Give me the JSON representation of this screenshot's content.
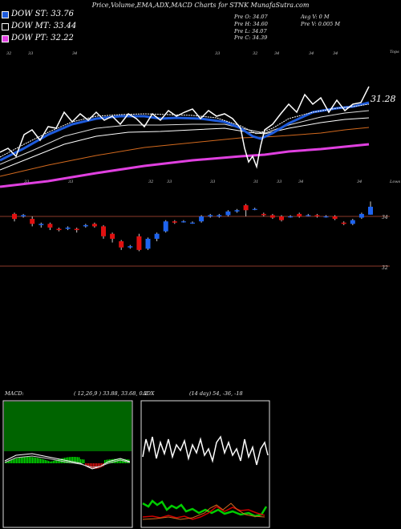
{
  "header": {
    "title": "Price,Volume,EMA,ADX,MACD Charts for STNK MunafaSutra.com"
  },
  "legend": [
    {
      "label": "DOW ST: 33.76",
      "color": "#1e5bdc"
    },
    {
      "label": "DOW MT: 33.44",
      "color": "#000000"
    },
    {
      "label": "DOW PT: 32.22",
      "color": "#e040e0"
    }
  ],
  "ohlc_info": {
    "open": "Pre  O: 34.07",
    "high": "Pre  H: 34.60",
    "low": "Pre  L: 34.07",
    "close": "Pre  C: 34.39",
    "avg_vol": "Avg V: 0  M",
    "pre_vol": "Pre  V: 0.005 M"
  },
  "price_chart": {
    "top_label": "Tops",
    "low_label": "Lows",
    "last_price_label": "31.28",
    "right_axis_labels": [
      "34",
      "32"
    ],
    "top_tick_labels": [
      "32",
      "33",
      "34",
      "33",
      "32",
      "34",
      "34",
      "34"
    ],
    "low_tick_labels": [
      "33",
      "33",
      "32",
      "33",
      "33",
      "31",
      "33",
      "34",
      "34"
    ]
  },
  "macd_panel": {
    "label": "MACD:",
    "params": "( 12,26,9 ) 33.88,  33.68,  0.2"
  },
  "adx_panel": {
    "label": "ADX",
    "params": "(14  day) 54,  -36,  -18"
  },
  "chart_data": {
    "type": "candlestick",
    "title": "Price,Volume,EMA,ADX,MACD Charts for STNK MunafaSutra.com",
    "y_ticks": [
      34,
      32
    ],
    "series": [
      {
        "name": "DOW ST",
        "value": 33.76
      },
      {
        "name": "DOW MT",
        "value": 33.44
      },
      {
        "name": "DOW PT",
        "value": 32.22
      }
    ],
    "candles": [
      {
        "o": 34.1,
        "c": 33.9,
        "h": 34.15,
        "l": 33.8
      },
      {
        "o": 34.0,
        "c": 34.05,
        "h": 34.1,
        "l": 33.95
      },
      {
        "o": 33.9,
        "c": 33.7,
        "h": 34.0,
        "l": 33.6
      },
      {
        "o": 33.65,
        "c": 33.7,
        "h": 33.75,
        "l": 33.55
      },
      {
        "o": 33.7,
        "c": 33.55,
        "h": 33.75,
        "l": 33.45
      },
      {
        "o": 33.5,
        "c": 33.45,
        "h": 33.55,
        "l": 33.4
      },
      {
        "o": 33.5,
        "c": 33.55,
        "h": 33.6,
        "l": 33.45
      },
      {
        "o": 33.5,
        "c": 33.45,
        "h": 33.55,
        "l": 33.35
      },
      {
        "o": 33.6,
        "c": 33.65,
        "h": 33.7,
        "l": 33.55
      },
      {
        "o": 33.7,
        "c": 33.6,
        "h": 33.75,
        "l": 33.55
      },
      {
        "o": 33.6,
        "c": 33.2,
        "h": 33.65,
        "l": 33.1
      },
      {
        "o": 33.3,
        "c": 33.1,
        "h": 33.35,
        "l": 32.95
      },
      {
        "o": 33.0,
        "c": 32.75,
        "h": 33.05,
        "l": 32.65
      },
      {
        "o": 32.75,
        "c": 32.8,
        "h": 32.85,
        "l": 32.7
      },
      {
        "o": 33.2,
        "c": 32.65,
        "h": 33.3,
        "l": 32.6
      },
      {
        "o": 32.7,
        "c": 33.1,
        "h": 33.15,
        "l": 32.65
      },
      {
        "o": 33.1,
        "c": 33.3,
        "h": 33.35,
        "l": 33.0
      },
      {
        "o": 33.4,
        "c": 33.8,
        "h": 33.85,
        "l": 33.35
      },
      {
        "o": 33.8,
        "c": 33.75,
        "h": 33.85,
        "l": 33.7
      },
      {
        "o": 33.8,
        "c": 33.8,
        "h": 33.85,
        "l": 33.75
      },
      {
        "o": 33.75,
        "c": 33.75,
        "h": 33.8,
        "l": 33.7
      },
      {
        "o": 33.8,
        "c": 34.0,
        "h": 34.05,
        "l": 33.75
      },
      {
        "o": 34.0,
        "c": 34.05,
        "h": 34.1,
        "l": 33.95
      },
      {
        "o": 34.0,
        "c": 34.05,
        "h": 34.1,
        "l": 33.95
      },
      {
        "o": 34.05,
        "c": 34.2,
        "h": 34.25,
        "l": 34.0
      },
      {
        "o": 34.2,
        "c": 34.25,
        "h": 34.3,
        "l": 34.15
      },
      {
        "o": 34.45,
        "c": 34.25,
        "h": 34.5,
        "l": 34.0
      },
      {
        "o": 34.3,
        "c": 34.3,
        "h": 34.35,
        "l": 34.25
      },
      {
        "o": 34.1,
        "c": 34.05,
        "h": 34.15,
        "l": 34.0
      },
      {
        "o": 34.05,
        "c": 33.95,
        "h": 34.1,
        "l": 33.9
      },
      {
        "o": 34.0,
        "c": 33.85,
        "h": 34.05,
        "l": 33.8
      },
      {
        "o": 34.0,
        "c": 34.0,
        "h": 34.05,
        "l": 33.95
      },
      {
        "o": 34.1,
        "c": 34.0,
        "h": 34.15,
        "l": 33.95
      },
      {
        "o": 34.05,
        "c": 34.05,
        "h": 34.1,
        "l": 34.0
      },
      {
        "o": 34.05,
        "c": 34.0,
        "h": 34.1,
        "l": 33.95
      },
      {
        "o": 34.0,
        "c": 34.0,
        "h": 34.05,
        "l": 33.95
      },
      {
        "o": 34.0,
        "c": 33.9,
        "h": 34.05,
        "l": 33.85
      },
      {
        "o": 33.75,
        "c": 33.7,
        "h": 33.8,
        "l": 33.65
      },
      {
        "o": 33.7,
        "c": 33.85,
        "h": 33.9,
        "l": 33.65
      },
      {
        "o": 33.95,
        "c": 34.1,
        "h": 34.15,
        "l": 33.9
      },
      {
        "o": 34.07,
        "c": 34.39,
        "h": 34.6,
        "l": 34.07
      }
    ]
  }
}
